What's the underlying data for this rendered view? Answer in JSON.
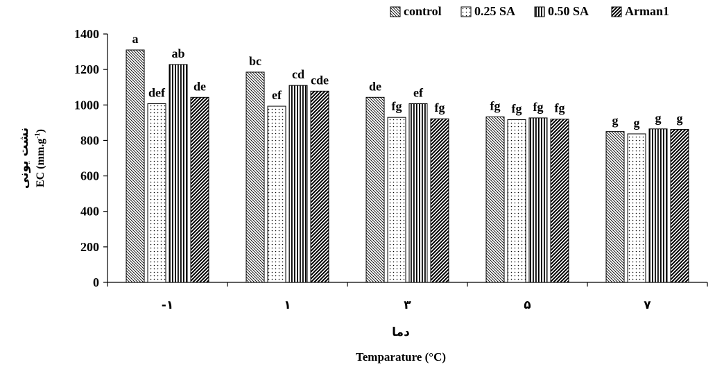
{
  "chart_data": {
    "type": "bar",
    "categories": [
      "-۱",
      "۱",
      "۳",
      "۵",
      "۷"
    ],
    "series": [
      {
        "name": "control",
        "values": [
          1310,
          1185,
          1043,
          933,
          850
        ],
        "letters": [
          "a",
          "bc",
          "de",
          "fg",
          "g"
        ],
        "pattern": "diag-left"
      },
      {
        "name": "0.25 SA",
        "values": [
          1007,
          993,
          930,
          917,
          837
        ],
        "letters": [
          "def",
          "ef",
          "fg",
          "fg",
          "g"
        ],
        "pattern": "dots"
      },
      {
        "name": "0.50 SA",
        "values": [
          1228,
          1110,
          1007,
          927,
          865
        ],
        "letters": [
          "ab",
          "cd",
          "ef",
          "fg",
          "g"
        ],
        "pattern": "vertical"
      },
      {
        "name": "Arman1",
        "values": [
          1043,
          1078,
          922,
          920,
          862
        ],
        "letters": [
          "de",
          "cde",
          "fg",
          "fg",
          "g"
        ],
        "pattern": "diag-right"
      }
    ],
    "ylim": [
      0,
      1400
    ],
    "yticks": [
      0,
      200,
      400,
      600,
      800,
      1000,
      1200,
      1400
    ],
    "ylabel_fa": "نشت یونی",
    "ylabel_en": "EC (mm.g",
    "ylabel_en_sup": "-1",
    "ylabel_en_end": ")",
    "xlabel_fa": "دما",
    "xlabel_en": "Temparature (°C)",
    "legend_position": "top-right",
    "grid": false
  }
}
